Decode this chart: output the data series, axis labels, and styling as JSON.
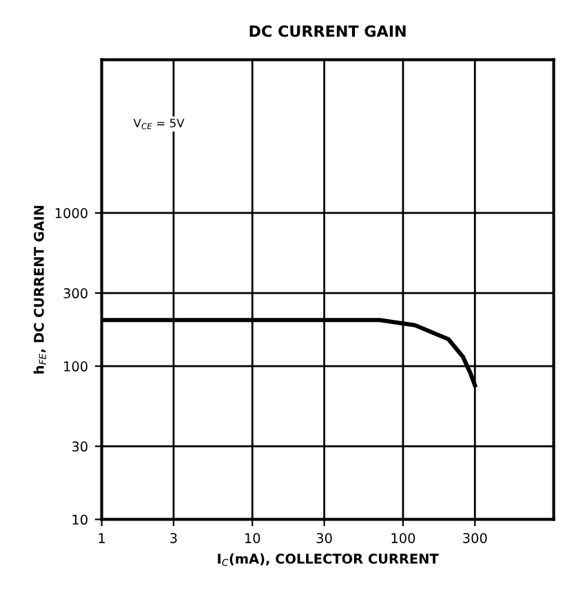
{
  "chart_data": {
    "type": "line",
    "title": "DC CURRENT GAIN",
    "xlabel": "I$_{C}$(mA), COLLECTOR CURRENT",
    "ylabel": "h$_{FE}$, DC CURRENT GAIN",
    "x": [
      1,
      70,
      120,
      200,
      250,
      280,
      300
    ],
    "series": [
      {
        "color": "#000000",
        "values": [
          200,
          200,
          185,
          150,
          115,
          90,
          75
        ]
      }
    ],
    "annotations": [
      "V$_{CE}$ = 5V"
    ],
    "log": "xy",
    "xlim": [
      1,
      1000
    ],
    "ylim": [
      10,
      10000
    ],
    "xticks": [
      1,
      3,
      10,
      30,
      100,
      300
    ],
    "yticks": [
      10,
      30,
      100,
      300,
      1000
    ],
    "grid": true,
    "line_style": "solid",
    "marker": "none"
  }
}
